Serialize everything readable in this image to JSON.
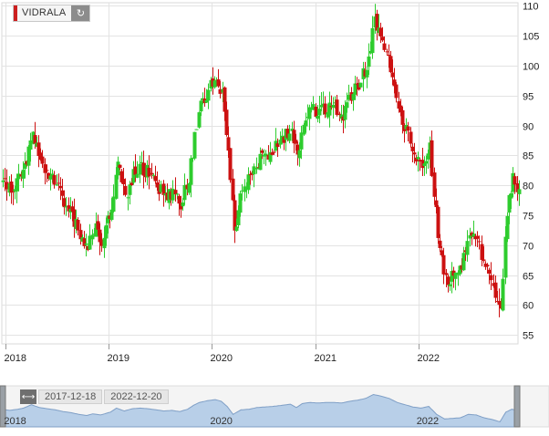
{
  "ticker": {
    "name": "VIDRALA",
    "color": "#cc1f1f",
    "refresh_icon": "refresh-icon"
  },
  "range": {
    "start": "2017-12-18",
    "end": "2022-12-20",
    "toggle_icon": "double-arrow-icon"
  },
  "navigator": {
    "labels": [
      "2018",
      "2020",
      "2022"
    ]
  },
  "colors": {
    "up": "#2ecc2e",
    "down": "#cc1111",
    "navigator_fill": "#b8cfe8",
    "navigator_line": "#7f9fc6"
  },
  "chart_data": {
    "type": "candlestick",
    "title": "",
    "xlabel": "",
    "ylabel": "",
    "x_ticks": [
      "2018",
      "2019",
      "2020",
      "2021",
      "2022"
    ],
    "y_ticks": [
      55,
      60,
      65,
      70,
      75,
      80,
      85,
      90,
      95,
      100,
      105,
      110
    ],
    "ylim": [
      53.5,
      110.5
    ],
    "xlim": [
      "2017-12-18",
      "2022-12-20"
    ],
    "grid": true,
    "y_axis_side": "right",
    "close_path": [
      [
        "2017-12-18",
        81
      ],
      [
        "2018-01-15",
        79
      ],
      [
        "2018-02-12",
        81
      ],
      [
        "2018-03-05",
        83
      ],
      [
        "2018-04-02",
        89
      ],
      [
        "2018-04-30",
        84
      ],
      [
        "2018-05-28",
        82
      ],
      [
        "2018-06-25",
        80
      ],
      [
        "2018-07-23",
        77
      ],
      [
        "2018-08-20",
        75
      ],
      [
        "2018-09-17",
        72
      ],
      [
        "2018-10-15",
        70
      ],
      [
        "2018-11-05",
        73
      ],
      [
        "2018-12-03",
        71
      ],
      [
        "2019-01-07",
        76
      ],
      [
        "2019-01-28",
        83
      ],
      [
        "2019-02-25",
        78
      ],
      [
        "2019-03-25",
        82
      ],
      [
        "2019-04-22",
        83
      ],
      [
        "2019-05-20",
        82
      ],
      [
        "2019-06-17",
        80
      ],
      [
        "2019-07-15",
        78
      ],
      [
        "2019-08-12",
        79
      ],
      [
        "2019-09-09",
        77
      ],
      [
        "2019-10-07",
        81
      ],
      [
        "2019-10-28",
        88
      ],
      [
        "2019-11-18",
        93
      ],
      [
        "2019-12-16",
        96
      ],
      [
        "2020-01-13",
        98
      ],
      [
        "2020-02-03",
        95
      ],
      [
        "2020-02-24",
        86
      ],
      [
        "2020-03-16",
        72
      ],
      [
        "2020-04-13",
        80
      ],
      [
        "2020-05-11",
        81
      ],
      [
        "2020-06-08",
        84
      ],
      [
        "2020-07-06",
        85
      ],
      [
        "2020-08-03",
        86
      ],
      [
        "2020-09-07",
        88
      ],
      [
        "2020-10-05",
        90
      ],
      [
        "2020-10-26",
        84
      ],
      [
        "2020-11-16",
        91
      ],
      [
        "2020-12-14",
        93
      ],
      [
        "2021-01-11",
        92
      ],
      [
        "2021-02-08",
        93
      ],
      [
        "2021-03-08",
        93
      ],
      [
        "2021-04-05",
        92
      ],
      [
        "2021-05-03",
        95
      ],
      [
        "2021-05-31",
        97
      ],
      [
        "2021-06-28",
        100
      ],
      [
        "2021-07-26",
        107
      ],
      [
        "2021-08-23",
        104
      ],
      [
        "2021-09-20",
        100
      ],
      [
        "2021-10-18",
        93
      ],
      [
        "2021-11-15",
        89
      ],
      [
        "2021-12-13",
        85
      ],
      [
        "2022-01-10",
        83
      ],
      [
        "2022-02-07",
        86
      ],
      [
        "2022-03-07",
        72
      ],
      [
        "2022-04-04",
        64
      ],
      [
        "2022-05-02",
        65
      ],
      [
        "2022-05-30",
        66
      ],
      [
        "2022-06-27",
        72
      ],
      [
        "2022-07-25",
        71
      ],
      [
        "2022-08-22",
        66
      ],
      [
        "2022-09-19",
        63
      ],
      [
        "2022-10-17",
        59
      ],
      [
        "2022-11-07",
        76
      ],
      [
        "2022-11-28",
        81
      ],
      [
        "2022-12-20",
        79
      ]
    ]
  }
}
